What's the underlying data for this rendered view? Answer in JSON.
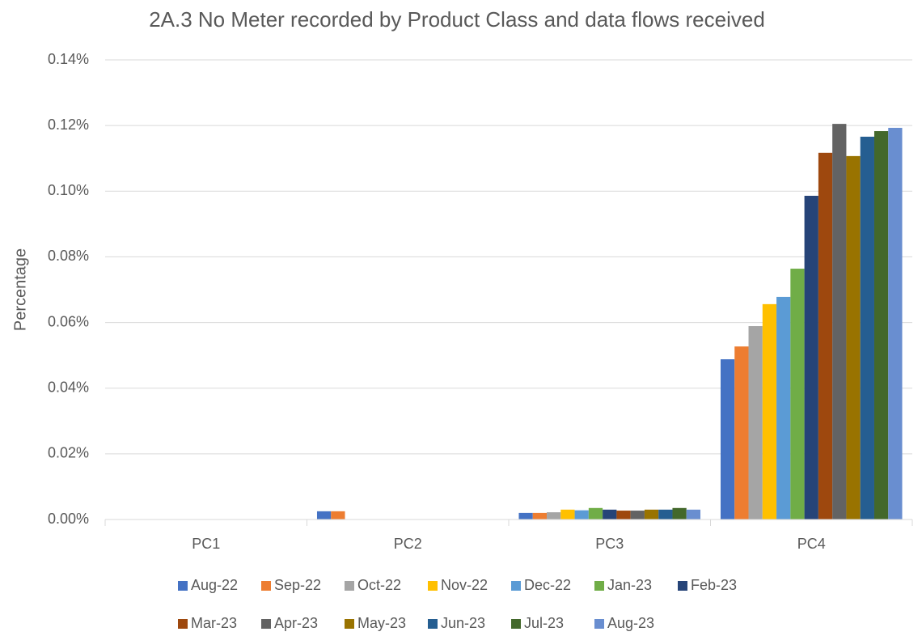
{
  "chart_data": {
    "type": "bar",
    "title": "2A.3 No Meter recorded by Product Class and data flows received",
    "y_label": "Percentage",
    "categories": [
      "PC1",
      "PC2",
      "PC3",
      "PC4"
    ],
    "series": [
      {
        "name": "Aug-22",
        "color": "#4472C4",
        "values": [
          0,
          0.0025,
          0.002,
          0.0488
        ]
      },
      {
        "name": "Sep-22",
        "color": "#ED7D31",
        "values": [
          0,
          0.0025,
          0.002,
          0.0527
        ]
      },
      {
        "name": "Oct-22",
        "color": "#A5A5A5",
        "values": [
          0,
          0,
          0.0022,
          0.0589
        ]
      },
      {
        "name": "Nov-22",
        "color": "#FFC000",
        "values": [
          0,
          0,
          0.003,
          0.0656
        ]
      },
      {
        "name": "Dec-22",
        "color": "#5B9BD5",
        "values": [
          0,
          0,
          0.0028,
          0.0678
        ]
      },
      {
        "name": "Jan-23",
        "color": "#70AD47",
        "values": [
          0,
          0,
          0.0035,
          0.0764
        ]
      },
      {
        "name": "Feb-23",
        "color": "#264478",
        "values": [
          0,
          0,
          0.003,
          0.0986
        ]
      },
      {
        "name": "Mar-23",
        "color": "#9E480E",
        "values": [
          0,
          0,
          0.0027,
          0.1117
        ]
      },
      {
        "name": "Apr-23",
        "color": "#636363",
        "values": [
          0,
          0,
          0.0027,
          0.1205
        ]
      },
      {
        "name": "May-23",
        "color": "#997300",
        "values": [
          0,
          0,
          0.003,
          0.1107
        ]
      },
      {
        "name": "Jun-23",
        "color": "#255E91",
        "values": [
          0,
          0,
          0.003,
          0.1166
        ]
      },
      {
        "name": "Jul-23",
        "color": "#43682B",
        "values": [
          0,
          0,
          0.0035,
          0.1183
        ]
      },
      {
        "name": "Aug-23",
        "color": "#698ED0",
        "values": [
          0,
          0,
          0.003,
          0.1193
        ]
      }
    ],
    "ylim": [
      0,
      0.14
    ],
    "yticks": [
      {
        "value": 0,
        "label": "0.00%"
      },
      {
        "value": 0.02,
        "label": "0.02%"
      },
      {
        "value": 0.04,
        "label": "0.04%"
      },
      {
        "value": 0.06,
        "label": "0.06%"
      },
      {
        "value": 0.08,
        "label": "0.08%"
      },
      {
        "value": 0.1,
        "label": "0.10%"
      },
      {
        "value": 0.12,
        "label": "0.12%"
      },
      {
        "value": 0.14,
        "label": "0.14%"
      }
    ],
    "grid": true,
    "legend": "bottom"
  }
}
